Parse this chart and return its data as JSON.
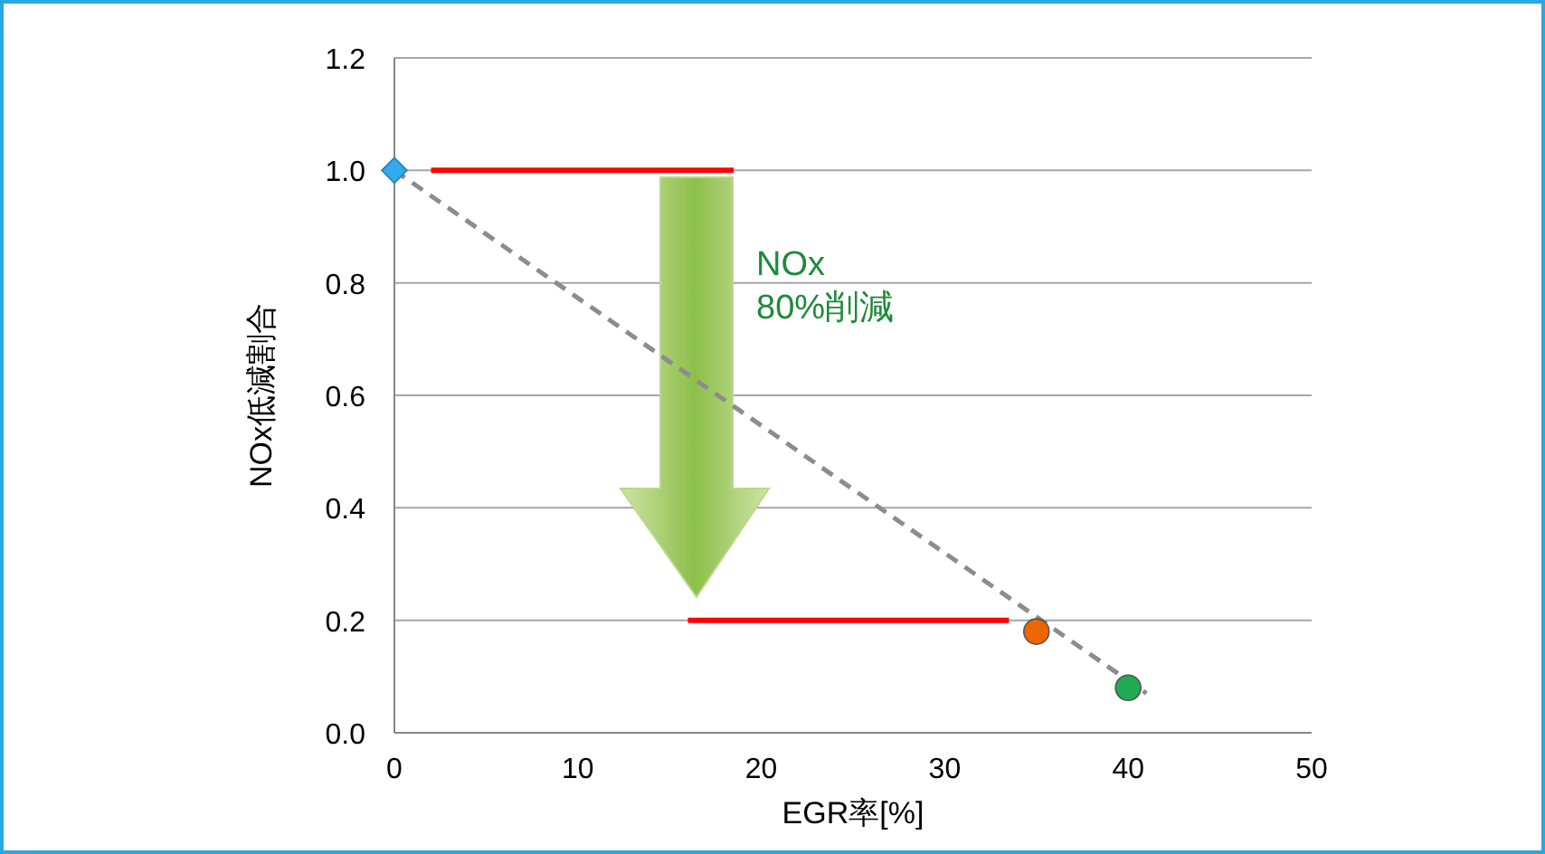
{
  "chart_data": {
    "type": "scatter",
    "xlabel": "EGR率[%]",
    "ylabel": "NOx低減割合",
    "xlim": [
      0,
      50
    ],
    "xticks": [
      0,
      10,
      20,
      30,
      40,
      50
    ],
    "ylim": [
      0,
      1.2
    ],
    "yticks": [
      {
        "value": 0,
        "label": "0.0"
      },
      {
        "value": 0.2,
        "label": "0.2"
      },
      {
        "value": 0.4,
        "label": "0.4"
      },
      {
        "value": 0.6,
        "label": "0.6"
      },
      {
        "value": 0.8,
        "label": "0.8"
      },
      {
        "value": 1,
        "label": "1.0"
      },
      {
        "value": 1.2,
        "label": "1.2"
      }
    ],
    "grid": "y",
    "series": [
      {
        "type": "line",
        "line_style": "dashed",
        "marker": "none",
        "color": "#8c8c8c",
        "x": [
          0,
          41
        ],
        "values": [
          1.0,
          0.07
        ]
      },
      {
        "type": "line",
        "line_style": "solid",
        "marker": "none",
        "color": "#ff0000",
        "x": [
          2,
          18.5
        ],
        "values": [
          1.0,
          1.0
        ]
      },
      {
        "type": "line",
        "line_style": "solid",
        "marker": "none",
        "color": "#ff0000",
        "x": [
          16,
          33.5
        ],
        "values": [
          0.2,
          0.2
        ]
      },
      {
        "marker": "diamond",
        "color": "#33aaee",
        "x": [
          0
        ],
        "values": [
          1.0
        ]
      },
      {
        "marker": "circle",
        "color": "#ee6600",
        "x": [
          35
        ],
        "values": [
          0.18
        ]
      },
      {
        "marker": "circle",
        "color": "#22aa55",
        "x": [
          40
        ],
        "values": [
          0.08
        ]
      }
    ],
    "annotations": [
      "NOx\n80%削減"
    ]
  }
}
